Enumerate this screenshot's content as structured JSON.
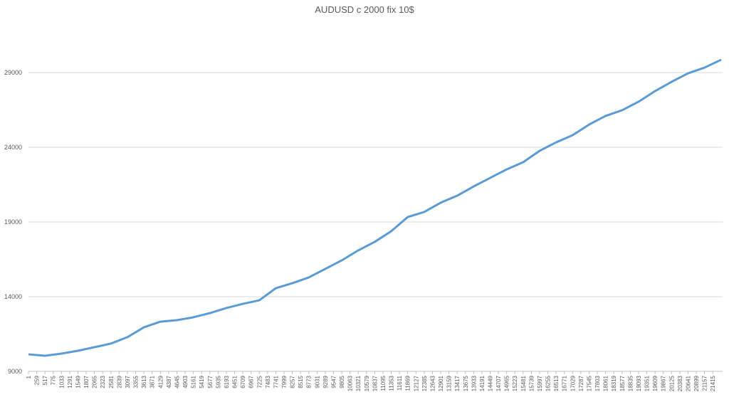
{
  "chart_data": {
    "type": "line",
    "title": "AUDUSD c 2000 fix 10$",
    "x": [
      1,
      517,
      1033,
      1549,
      2065,
      2581,
      3097,
      3613,
      4129,
      4645,
      5161,
      5677,
      6193,
      6709,
      7225,
      7741,
      8257,
      8773,
      9289,
      9805,
      10321,
      10837,
      11353,
      11869,
      12385,
      12901,
      13417,
      13933,
      14449,
      14965,
      15481,
      15997,
      16513,
      17029,
      17545,
      18061,
      18577,
      19093,
      19609,
      20125,
      20641,
      21157,
      21680
    ],
    "series": [
      {
        "color": "#5b9bd5",
        "values": [
          10140,
          10050,
          10190,
          10380,
          10620,
          10860,
          11290,
          11950,
          12330,
          12430,
          12620,
          12900,
          13240,
          13520,
          13760,
          14570,
          14900,
          15290,
          15860,
          16430,
          17100,
          17670,
          18380,
          19330,
          19670,
          20290,
          20760,
          21380,
          21950,
          22520,
          23000,
          23760,
          24330,
          24810,
          25520,
          26100,
          26480,
          27050,
          27760,
          28380,
          28950,
          29330,
          29860
        ]
      }
    ],
    "xlim": [
      1,
      21723
    ],
    "xticks": [
      1,
      259,
      517,
      775,
      1033,
      1291,
      1549,
      1807,
      2065,
      2323,
      2581,
      2839,
      3097,
      3355,
      3613,
      3871,
      4129,
      4387,
      4645,
      4903,
      5161,
      5419,
      5677,
      5935,
      6193,
      6451,
      6709,
      6967,
      7225,
      7483,
      7741,
      7999,
      8257,
      8515,
      8773,
      9031,
      9289,
      9547,
      9805,
      10063,
      10321,
      10579,
      10837,
      11095,
      11353,
      11611,
      11869,
      12127,
      12385,
      12643,
      12901,
      13159,
      13417,
      13675,
      13933,
      14191,
      14449,
      14707,
      14965,
      15223,
      15481,
      15739,
      15997,
      16255,
      16513,
      16771,
      17029,
      17287,
      17545,
      17803,
      18061,
      18319,
      18577,
      18835,
      19093,
      19351,
      19609,
      19867,
      20125,
      20383,
      20641,
      20899,
      21157,
      21415
    ],
    "ylim": [
      9000,
      31000
    ],
    "yticks": [
      9000,
      14000,
      19000,
      24000,
      29000
    ],
    "grid": true
  }
}
